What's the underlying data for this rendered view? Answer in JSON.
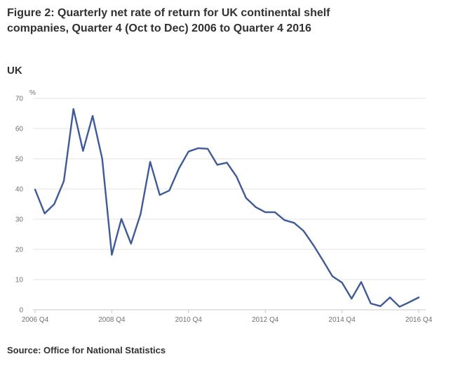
{
  "title": "Figure 2: Quarterly net rate of return for UK continental shelf companies, Quarter 4 (Oct to Dec) 2006 to Quarter 4 2016",
  "subtitle": "UK",
  "source": "Source: Office for National Statistics",
  "colors": {
    "series": "#3f5b97",
    "grid": "#e3e3e3",
    "text": "#323132"
  },
  "chart_data": {
    "type": "line",
    "title": "Figure 2: Quarterly net rate of return for UK continental shelf companies, Quarter 4 (Oct to Dec) 2006 to Quarter 4 2016",
    "ylabel": "%",
    "ylim": [
      0,
      70
    ],
    "yticks": [
      0,
      10,
      20,
      30,
      40,
      50,
      60,
      70
    ],
    "xticks": [
      "2006 Q4",
      "2008 Q4",
      "2010 Q4",
      "2012 Q4",
      "2014 Q4",
      "2016 Q4"
    ],
    "grid": true,
    "x": [
      "2006 Q4",
      "2007 Q1",
      "2007 Q2",
      "2007 Q3",
      "2007 Q4",
      "2008 Q1",
      "2008 Q2",
      "2008 Q3",
      "2008 Q4",
      "2009 Q1",
      "2009 Q2",
      "2009 Q3",
      "2009 Q4",
      "2010 Q1",
      "2010 Q2",
      "2010 Q3",
      "2010 Q4",
      "2011 Q1",
      "2011 Q2",
      "2011 Q3",
      "2011 Q4",
      "2012 Q1",
      "2012 Q2",
      "2012 Q3",
      "2012 Q4",
      "2013 Q1",
      "2013 Q2",
      "2013 Q3",
      "2013 Q4",
      "2014 Q1",
      "2014 Q2",
      "2014 Q3",
      "2014 Q4",
      "2015 Q1",
      "2015 Q2",
      "2015 Q3",
      "2015 Q4",
      "2016 Q1",
      "2016 Q2",
      "2016 Q3",
      "2016 Q4"
    ],
    "series": [
      {
        "values": [
          39.8,
          31.9,
          35.0,
          42.6,
          66.5,
          52.6,
          64.2,
          50.0,
          18.2,
          30.1,
          21.9,
          31.7,
          49.0,
          38.0,
          39.5,
          46.8,
          52.4,
          53.5,
          53.3,
          48.0,
          48.7,
          44.1,
          37.0,
          34.0,
          32.3,
          32.3,
          29.7,
          28.8,
          26.1,
          21.5,
          16.4,
          11.1,
          9.0,
          3.7,
          9.2,
          2.1,
          1.2,
          4.1,
          1.0,
          2.5,
          4.1
        ]
      }
    ]
  }
}
